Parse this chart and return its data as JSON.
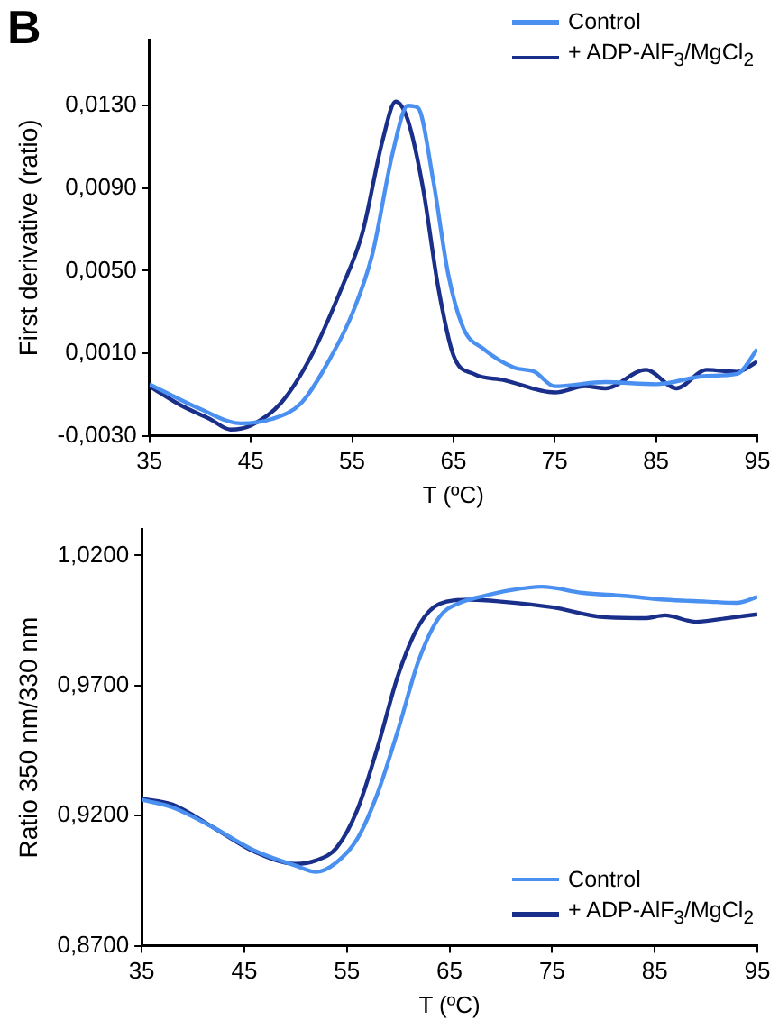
{
  "chart_data": [
    {
      "type": "line",
      "title": "B",
      "xlabel": "T (ºC)",
      "ylabel": "First derivative (ratio)",
      "legend": "top right",
      "grid": false,
      "marker": "none",
      "line_style": "solid",
      "xlim": [
        35,
        95
      ],
      "xticks": [
        35,
        45,
        55,
        65,
        75,
        85,
        95
      ],
      "ylim": [
        -0.003,
        0.0162
      ],
      "yticks": [
        {
          "value": -0.003,
          "label": "-0,0030"
        },
        {
          "value": 0.001,
          "label": "0,0010"
        },
        {
          "value": 0.005,
          "label": "0,0050"
        },
        {
          "value": 0.009,
          "label": "0,0090"
        },
        {
          "value": 0.013,
          "label": "0,0130"
        }
      ],
      "series": [
        {
          "name": "Control",
          "color": "#4a90f0",
          "x": [
            35,
            40,
            44,
            47,
            50,
            53,
            55,
            57,
            59,
            60.5,
            61.5,
            63,
            64.5,
            66,
            68,
            71,
            73,
            75,
            80,
            85,
            90,
            93,
            95
          ],
          "values": [
            -0.0005,
            -0.0017,
            -0.0024,
            -0.0022,
            -0.0014,
            0.0009,
            0.0029,
            0.0058,
            0.0107,
            0.013,
            0.0129,
            0.0094,
            0.0048,
            0.0022,
            0.0012,
            0.0003,
            0.0001,
            -0.0006,
            -0.0004,
            -0.0005,
            -0.0001,
            0.0,
            0.0012
          ]
        },
        {
          "name": "+ ADP-AlF$_{3}$/MgCl$_{2}$",
          "color": "#1a2f8a",
          "x": [
            35,
            38,
            41,
            43,
            45,
            48,
            51,
            54,
            56,
            58,
            59.3,
            60.5,
            62,
            63.5,
            65,
            67,
            70,
            75,
            78,
            80,
            84,
            87,
            90,
            93,
            95
          ],
          "values": [
            -0.0006,
            -0.0015,
            -0.0022,
            -0.0027,
            -0.0025,
            -0.0014,
            0.0009,
            0.0042,
            0.0068,
            0.0113,
            0.0132,
            0.0123,
            0.009,
            0.0042,
            0.0009,
            0.0,
            -0.0003,
            -0.0009,
            -0.0006,
            -0.0007,
            0.0002,
            -0.0007,
            0.0002,
            0.0001,
            0.0006
          ]
        }
      ]
    },
    {
      "type": "line",
      "xlabel": "T (ºC)",
      "ylabel": "Ratio 350 nm/330 nm",
      "legend": "bottom right",
      "grid": false,
      "marker": "none",
      "line_style": "solid",
      "xlim": [
        35,
        95
      ],
      "xticks": [
        35,
        45,
        55,
        65,
        75,
        85,
        95
      ],
      "ylim": [
        0.87,
        1.03
      ],
      "yticks": [
        {
          "value": 0.87,
          "label": "0,8700"
        },
        {
          "value": 0.92,
          "label": "0,9200"
        },
        {
          "value": 0.97,
          "label": "0,9700"
        },
        {
          "value": 1.02,
          "label": "1,0200"
        }
      ],
      "series": [
        {
          "name": "Control",
          "color": "#4a90f0",
          "x": [
            35,
            38,
            42,
            46,
            50,
            52,
            54,
            56,
            58,
            60,
            62,
            64,
            66,
            68,
            71,
            74,
            78,
            82,
            86,
            90,
            93,
            95
          ],
          "values": [
            0.9261,
            0.9232,
            0.9154,
            0.9066,
            0.9008,
            0.8984,
            0.9021,
            0.911,
            0.9287,
            0.9531,
            0.9797,
            0.9963,
            1.0018,
            1.0041,
            1.0067,
            1.008,
            1.0056,
            1.0045,
            1.003,
            1.0023,
            1.0018,
            1.0041
          ]
        },
        {
          "name": "+ ADP-AlF$_{3}$/MgCl$_{2}$",
          "color": "#1a2f8a",
          "x": [
            35,
            38,
            42,
            46,
            50,
            52,
            54,
            56,
            58,
            60,
            62,
            64,
            67,
            70,
            75,
            80,
            84,
            86,
            89,
            92,
            95
          ],
          "values": [
            0.9265,
            0.9243,
            0.9154,
            0.9061,
            0.9015,
            0.9028,
            0.9077,
            0.9221,
            0.9464,
            0.9741,
            0.993,
            1.0014,
            1.003,
            1.0023,
            1.0001,
            0.9963,
            0.9959,
            0.997,
            0.9945,
            0.9959,
            0.9974
          ]
        }
      ]
    }
  ]
}
